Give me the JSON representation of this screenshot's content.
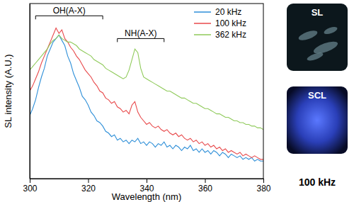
{
  "chart_data": {
    "type": "line",
    "x_label": "Wavelength (nm)",
    "y_label": "SL intensity (A.U.)",
    "x": [
      300,
      301,
      302,
      303,
      304,
      305,
      306,
      307,
      308,
      309,
      310,
      311,
      312,
      313,
      314,
      315,
      316,
      317,
      318,
      319,
      320,
      321,
      322,
      323,
      324,
      325,
      326,
      327,
      328,
      329,
      330,
      331,
      332,
      333,
      334,
      335,
      336,
      337,
      338,
      339,
      340,
      341,
      342,
      343,
      344,
      345,
      346,
      347,
      348,
      349,
      350,
      351,
      352,
      353,
      354,
      355,
      356,
      357,
      358,
      359,
      360,
      361,
      362,
      363,
      364,
      365,
      366,
      367,
      368,
      369,
      370,
      371,
      372,
      373,
      374,
      375,
      376,
      377,
      378,
      379,
      380
    ],
    "series": [
      {
        "name": "20 kHz",
        "color": "#2e8fd8",
        "values": [
          0.36,
          0.4,
          0.45,
          0.52,
          0.58,
          0.63,
          0.7,
          0.74,
          0.78,
          0.8,
          0.82,
          0.79,
          0.76,
          0.7,
          0.66,
          0.6,
          0.56,
          0.52,
          0.47,
          0.45,
          0.42,
          0.38,
          0.36,
          0.33,
          0.32,
          0.3,
          0.27,
          0.26,
          0.24,
          0.25,
          0.22,
          0.23,
          0.21,
          0.22,
          0.2,
          0.22,
          0.21,
          0.23,
          0.2,
          0.21,
          0.19,
          0.21,
          0.2,
          0.18,
          0.2,
          0.19,
          0.21,
          0.18,
          0.19,
          0.17,
          0.19,
          0.18,
          0.16,
          0.18,
          0.17,
          0.19,
          0.16,
          0.17,
          0.15,
          0.17,
          0.15,
          0.16,
          0.14,
          0.16,
          0.15,
          0.13,
          0.15,
          0.14,
          0.12,
          0.14,
          0.13,
          0.12,
          0.13,
          0.11,
          0.12,
          0.11,
          0.12,
          0.1,
          0.11,
          0.1,
          0.1
        ]
      },
      {
        "name": "100 kHz",
        "color": "#e8494b",
        "values": [
          0.5,
          0.53,
          0.57,
          0.61,
          0.66,
          0.7,
          0.74,
          0.78,
          0.82,
          0.86,
          0.83,
          0.85,
          0.8,
          0.78,
          0.75,
          0.73,
          0.7,
          0.68,
          0.65,
          0.62,
          0.6,
          0.58,
          0.55,
          0.53,
          0.5,
          0.49,
          0.46,
          0.45,
          0.43,
          0.44,
          0.41,
          0.4,
          0.38,
          0.39,
          0.37,
          0.42,
          0.44,
          0.38,
          0.35,
          0.33,
          0.31,
          0.32,
          0.3,
          0.29,
          0.3,
          0.28,
          0.27,
          0.28,
          0.26,
          0.25,
          0.26,
          0.24,
          0.25,
          0.23,
          0.22,
          0.23,
          0.21,
          0.22,
          0.2,
          0.21,
          0.19,
          0.2,
          0.18,
          0.19,
          0.17,
          0.18,
          0.16,
          0.17,
          0.15,
          0.16,
          0.15,
          0.14,
          0.15,
          0.13,
          0.14,
          0.13,
          0.12,
          0.13,
          0.12,
          0.11,
          0.11
        ]
      },
      {
        "name": "362 kHz",
        "color": "#8fca5a",
        "values": [
          0.62,
          0.64,
          0.66,
          0.68,
          0.7,
          0.72,
          0.74,
          0.77,
          0.79,
          0.8,
          0.82,
          0.8,
          0.79,
          0.78,
          0.78,
          0.77,
          0.76,
          0.74,
          0.73,
          0.72,
          0.71,
          0.7,
          0.68,
          0.67,
          0.66,
          0.65,
          0.63,
          0.62,
          0.61,
          0.6,
          0.59,
          0.58,
          0.57,
          0.58,
          0.62,
          0.68,
          0.74,
          0.72,
          0.63,
          0.58,
          0.57,
          0.56,
          0.55,
          0.54,
          0.53,
          0.52,
          0.51,
          0.5,
          0.5,
          0.49,
          0.48,
          0.47,
          0.46,
          0.46,
          0.45,
          0.44,
          0.43,
          0.43,
          0.42,
          0.41,
          0.4,
          0.4,
          0.39,
          0.38,
          0.37,
          0.37,
          0.36,
          0.35,
          0.35,
          0.34,
          0.33,
          0.33,
          0.32,
          0.32,
          0.31,
          0.31,
          0.3,
          0.3,
          0.29,
          0.29,
          0.28
        ]
      }
    ],
    "xlim": [
      300,
      380
    ],
    "xticks": [
      300,
      320,
      340,
      360,
      380
    ],
    "ylim": [
      0,
      1
    ],
    "yticks": [],
    "tick_labels": "x",
    "grid": false,
    "legend": "upper right",
    "annotations": [
      {
        "text": "OH(A-X)",
        "x": [
          302,
          325
        ],
        "y": 0.93
      },
      {
        "text": "NH(A-X)",
        "x": [
          330,
          346
        ],
        "y": 0.8
      }
    ],
    "insets": [
      {
        "label": "SL"
      },
      {
        "label": "SCL"
      }
    ],
    "inset_caption": "100 kHz"
  }
}
